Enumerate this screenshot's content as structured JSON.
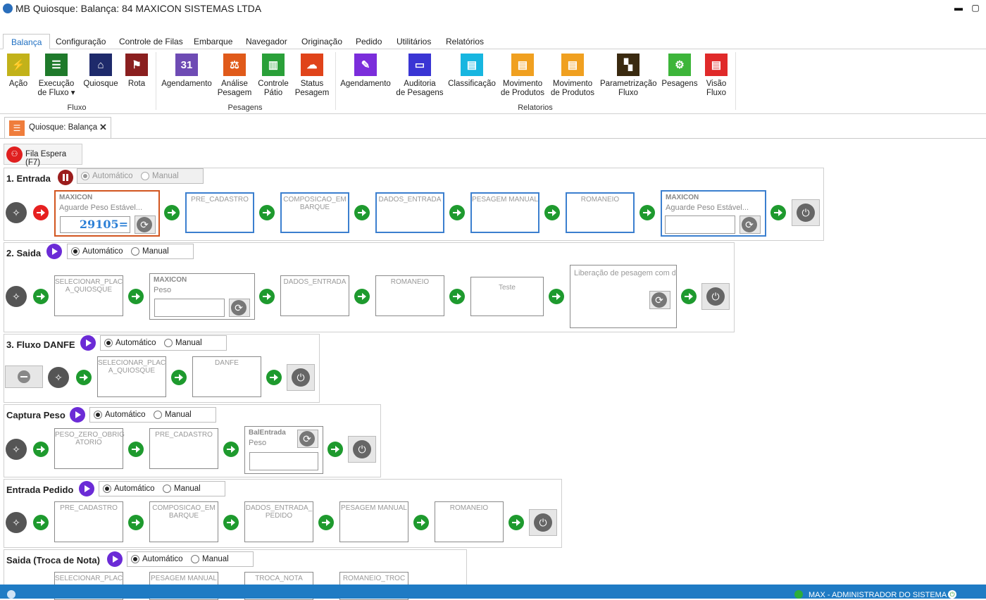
{
  "window": {
    "title": "MB Quiosque: Balança: 84 MAXICON SISTEMAS LTDA",
    "min": "▬",
    "max": "▢"
  },
  "menu": [
    "Balança",
    "Configuração",
    "Controle de Filas",
    "Embarque",
    "Navegador",
    "Originação",
    "Pedido",
    "Utilitários",
    "Relatórios"
  ],
  "ribbon": {
    "groups": [
      "Fluxo",
      "Pesagens",
      "Relatorios"
    ],
    "buttons": [
      {
        "label": "Ação",
        "color": "#c2b21a",
        "icon": "lightning-icon"
      },
      {
        "label": "Execução\nde Fluxo ▾",
        "color": "#1f7a2b",
        "icon": "list-icon"
      },
      {
        "label": "Quiosque",
        "color": "#1e2a6b",
        "icon": "house-icon"
      },
      {
        "label": "Rota",
        "color": "#8a1f1f",
        "icon": "signpost-icon"
      },
      {
        "label": "Agendamento",
        "color": "#6e4bb4",
        "icon": "calendar-icon"
      },
      {
        "label": "Análise\nPesagem",
        "color": "#e05a1a",
        "icon": "gavel-icon"
      },
      {
        "label": "Controle\nPátio",
        "color": "#2aa039",
        "icon": "chart-icon"
      },
      {
        "label": "Status\nPesagem",
        "color": "#e0431a",
        "icon": "cloud-icon"
      },
      {
        "label": "Agendamento",
        "color": "#7b2ddb",
        "icon": "report-icon"
      },
      {
        "label": "Auditoria\nde Pesagens",
        "color": "#3a35d4",
        "icon": "monitor-icon"
      },
      {
        "label": "Classificação",
        "color": "#17b6e0",
        "icon": "document-icon"
      },
      {
        "label": "Movimento\nde Produtos",
        "color": "#f0a020",
        "icon": "document-icon"
      },
      {
        "label": "Movimento\nde Produtos",
        "color": "#f0a020",
        "icon": "document-icon"
      },
      {
        "label": "Parametrização\nFluxo",
        "color": "#3a2a10",
        "icon": "grid-icon"
      },
      {
        "label": "Pesagens",
        "color": "#3db53a",
        "icon": "gear-document-icon"
      },
      {
        "label": "Visão\nFluxo",
        "color": "#e02a2a",
        "icon": "document-icon"
      }
    ]
  },
  "doc_tab": {
    "label": "Quiosque: Balança",
    "close": "✕"
  },
  "fila": {
    "label": "Fila Espera (F7)"
  },
  "modes": {
    "auto": "Automático",
    "manual": "Manual"
  },
  "flows": [
    {
      "title": "1. Entrada",
      "scale1": {
        "name": "MAXICON",
        "status": "Aguarde Peso Estável...",
        "value": "29105="
      },
      "steps": [
        "PRE_CADASTRO",
        "COMPOSICAO_EM\nBARQUE",
        "DADOS_ENTRADA",
        "PESAGEM MANUAL",
        "ROMANEIO"
      ],
      "scale2": {
        "name": "MAXICON",
        "status": "Aguarde Peso Estável..."
      }
    },
    {
      "title": "2. Saida",
      "step1": "SELECIONAR_PLAC\nA_QUIOSQUE",
      "scale": {
        "name": "MAXICON",
        "status": "Peso"
      },
      "steps": [
        "DADOS_ENTRADA",
        "ROMANEIO",
        "Teste"
      ],
      "last": "Liberação de pesagem com div"
    },
    {
      "title": "3. Fluxo DANFE",
      "steps": [
        "SELECIONAR_PLAC\nA_QUIOSQUE",
        "DANFE"
      ]
    },
    {
      "title": "Captura Peso",
      "steps": [
        "PESO_ZERO_OBRIG\nATORIO",
        "PRE_CADASTRO"
      ],
      "scale": {
        "name": "BalEntrada",
        "status": "Peso"
      }
    },
    {
      "title": "Entrada Pedido",
      "steps": [
        "PRE_CADASTRO",
        "COMPOSICAO_EM\nBARQUE",
        "DADOS_ENTRADA_\nPEDIDO",
        "PESAGEM MANUAL",
        "ROMANEIO"
      ]
    },
    {
      "title": "Saida (Troca de Nota)",
      "steps": [
        "SELECIONAR_PLAC",
        "PESAGEM MANUAL",
        "TROCA_NOTA",
        "ROMANEIO_TROC"
      ]
    }
  ],
  "status": {
    "user": "MAX - ADMINISTRADOR DO SISTEMA"
  }
}
